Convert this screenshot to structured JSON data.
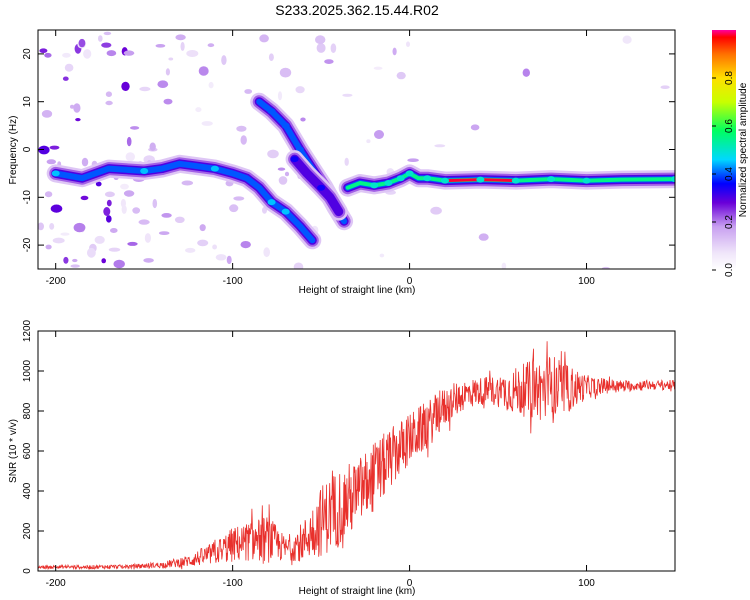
{
  "title": "S233.2025.362.15.44.R02",
  "chart_data": [
    {
      "type": "heatmap",
      "name": "spectrogram",
      "xlabel": "Height of straight line (km)",
      "ylabel": "Frequency (Hz)",
      "xlim": [
        -210,
        150
      ],
      "ylim": [
        -25,
        25
      ],
      "xticks": [
        -200,
        -100,
        0,
        100
      ],
      "yticks": [
        -20,
        -10,
        0,
        10,
        20
      ],
      "colorbar": {
        "label": "Normalized spectral amplitude",
        "range": [
          0,
          1
        ],
        "ticks": [
          0.0,
          0.2,
          0.4,
          0.6,
          0.8
        ]
      },
      "ridges": [
        {
          "name": "main-doppler-ridge",
          "points": [
            [
              -200,
              -5
            ],
            [
              -185,
              -6
            ],
            [
              -170,
              -4
            ],
            [
              -150,
              -4.5
            ],
            [
              -140,
              -4
            ],
            [
              -130,
              -3
            ],
            [
              -120,
              -3.5
            ],
            [
              -110,
              -4
            ],
            [
              -100,
              -5
            ],
            [
              -92,
              -6
            ],
            [
              -85,
              -8
            ],
            [
              -78,
              -11
            ],
            [
              -70,
              -13
            ],
            [
              -62,
              -16
            ],
            [
              -55,
              -19
            ]
          ],
          "peak_amplitude": 0.45
        },
        {
          "name": "upper-branch",
          "points": [
            [
              -85,
              10
            ],
            [
              -78,
              8
            ],
            [
              -70,
              5
            ],
            [
              -62,
              0
            ],
            [
              -55,
              -4
            ],
            [
              -48,
              -8
            ],
            [
              -42,
              -12
            ],
            [
              -37,
              -15
            ]
          ],
          "peak_amplitude": 0.4
        },
        {
          "name": "middle-branch",
          "points": [
            [
              -65,
              -2
            ],
            [
              -58,
              -5
            ],
            [
              -50,
              -8
            ],
            [
              -45,
              -10
            ],
            [
              -40,
              -13
            ]
          ],
          "peak_amplitude": 0.35
        },
        {
          "name": "converging-ridge",
          "points": [
            [
              -35,
              -8
            ],
            [
              -28,
              -7
            ],
            [
              -20,
              -7.5
            ],
            [
              -12,
              -7
            ],
            [
              -5,
              -6
            ],
            [
              0,
              -5
            ],
            [
              5,
              -6
            ],
            [
              10,
              -6
            ],
            [
              20,
              -6.5
            ],
            [
              40,
              -6.3
            ],
            [
              60,
              -6.5
            ],
            [
              80,
              -6.2
            ],
            [
              100,
              -6.5
            ],
            [
              120,
              -6.3
            ],
            [
              150,
              -6.2
            ]
          ],
          "peak_amplitude": 0.98
        }
      ]
    },
    {
      "type": "line",
      "name": "snr",
      "xlabel": "Height of straight line (km)",
      "ylabel": "SNR (10 * v/v)",
      "xlim": [
        -210,
        150
      ],
      "ylim": [
        0,
        1200
      ],
      "xticks": [
        -200,
        -100,
        0,
        100
      ],
      "yticks": [
        0,
        200,
        400,
        600,
        800,
        1000,
        1200
      ],
      "color": "#e8302c",
      "envelope": {
        "x": [
          -210,
          -180,
          -160,
          -140,
          -125,
          -110,
          -100,
          -90,
          -80,
          -70,
          -60,
          -50,
          -40,
          -30,
          -20,
          -10,
          0,
          10,
          20,
          30,
          40,
          50,
          60,
          70,
          80,
          90,
          100,
          110,
          120,
          135,
          150
        ],
        "mean": [
          20,
          20,
          22,
          30,
          50,
          90,
          130,
          150,
          160,
          110,
          150,
          250,
          320,
          380,
          470,
          570,
          660,
          730,
          820,
          880,
          900,
          900,
          900,
          910,
          910,
          910,
          920,
          925,
          925,
          930,
          930
        ],
        "amplitude": [
          8,
          10,
          10,
          15,
          30,
          60,
          90,
          100,
          120,
          60,
          100,
          180,
          200,
          180,
          180,
          150,
          130,
          120,
          100,
          80,
          70,
          80,
          120,
          150,
          180,
          120,
          60,
          40,
          30,
          25,
          25
        ]
      }
    }
  ]
}
